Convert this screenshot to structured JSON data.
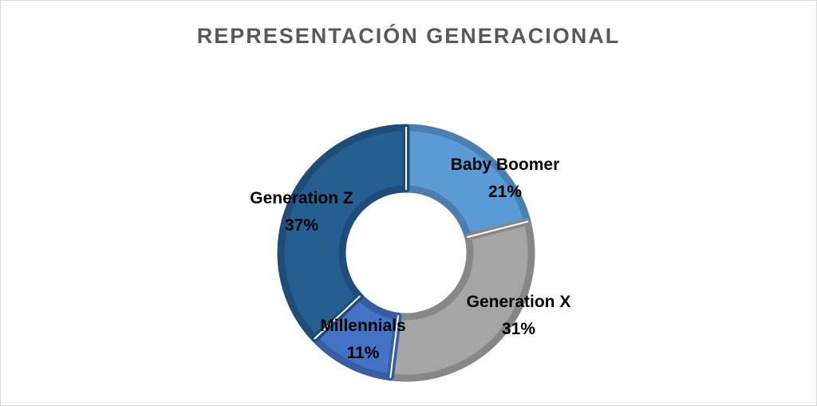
{
  "chart_data": {
    "type": "pie",
    "variant": "doughnut",
    "title": "REPRESENTACIÓN GENERACIONAL",
    "categories": [
      "Baby Boomer",
      "Generation X",
      "Millennials",
      "Generation Z"
    ],
    "values": [
      21,
      31,
      11,
      37
    ],
    "value_labels": [
      "21%",
      "31%",
      "11%",
      "37%"
    ],
    "colors": [
      "#5b9bd5",
      "#a5a5a5",
      "#4472c4",
      "#255e91"
    ],
    "legend": "none"
  }
}
